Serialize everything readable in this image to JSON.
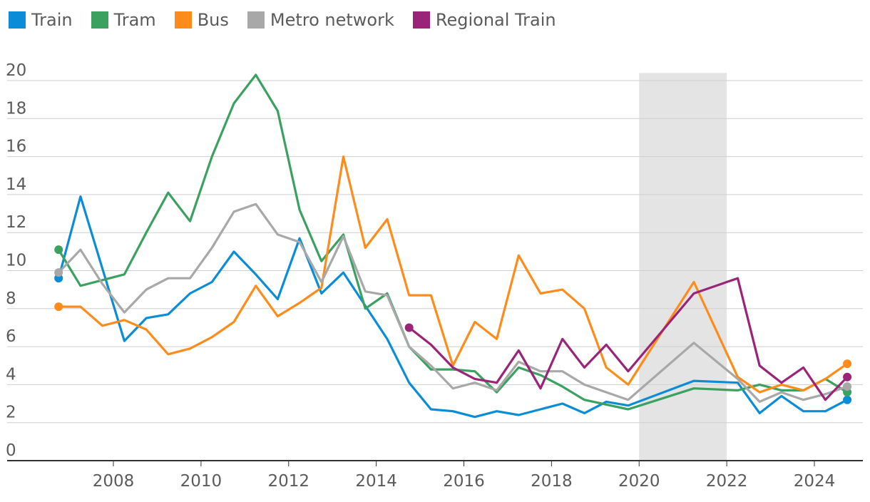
{
  "chart_data": {
    "type": "line",
    "title": "",
    "xlabel": "",
    "ylabel": "",
    "ylim": [
      0,
      20
    ],
    "xlim": [
      2006.5,
      2025.5
    ],
    "y_ticks": [
      "0",
      "2",
      "4",
      "6",
      "8",
      "10",
      "12",
      "14",
      "16",
      "18",
      "20"
    ],
    "x_ticks": [
      "2008",
      "2010",
      "2012",
      "2014",
      "2016",
      "2018",
      "2020",
      "2022",
      "2024"
    ],
    "grid": true,
    "legend_position": "top-left",
    "shaded_region": [
      2020,
      2022
    ],
    "series": [
      {
        "name": "Train",
        "color": "#0a8dd6",
        "points": [
          [
            2006.75,
            9.6
          ],
          [
            2007.25,
            13.9
          ],
          [
            2008.25,
            6.3
          ],
          [
            2008.75,
            7.5
          ],
          [
            2009.25,
            7.7
          ],
          [
            2009.75,
            8.8
          ],
          [
            2010.25,
            9.4
          ],
          [
            2010.75,
            11.0
          ],
          [
            2011.25,
            9.8
          ],
          [
            2011.75,
            8.5
          ],
          [
            2012.25,
            11.7
          ],
          [
            2012.75,
            8.8
          ],
          [
            2013.25,
            9.9
          ],
          [
            2014.25,
            6.4
          ],
          [
            2014.75,
            4.1
          ],
          [
            2015.25,
            2.7
          ],
          [
            2015.75,
            2.6
          ],
          [
            2016.25,
            2.3
          ],
          [
            2016.75,
            2.6
          ],
          [
            2017.25,
            2.4
          ],
          [
            2017.75,
            2.7
          ],
          [
            2018.25,
            3.0
          ],
          [
            2018.75,
            2.5
          ],
          [
            2019.25,
            3.1
          ],
          [
            2019.75,
            2.9
          ],
          [
            2021.25,
            4.2
          ],
          [
            2022.25,
            4.1
          ],
          [
            2022.75,
            2.5
          ],
          [
            2023.25,
            3.4
          ],
          [
            2023.75,
            2.6
          ],
          [
            2024.25,
            2.6
          ],
          [
            2024.75,
            3.2
          ]
        ]
      },
      {
        "name": "Tram",
        "color": "#3aa160",
        "points": [
          [
            2006.75,
            11.1
          ],
          [
            2007.25,
            9.2
          ],
          [
            2007.75,
            9.5
          ],
          [
            2008.25,
            9.8
          ],
          [
            2008.75,
            12.0
          ],
          [
            2009.25,
            14.1
          ],
          [
            2009.75,
            12.6
          ],
          [
            2010.25,
            16.0
          ],
          [
            2010.75,
            18.8
          ],
          [
            2011.25,
            20.3
          ],
          [
            2011.75,
            18.4
          ],
          [
            2012.25,
            13.2
          ],
          [
            2012.75,
            10.5
          ],
          [
            2013.25,
            11.9
          ],
          [
            2013.75,
            8.0
          ],
          [
            2014.25,
            8.8
          ],
          [
            2014.75,
            6.0
          ],
          [
            2015.25,
            4.8
          ],
          [
            2015.75,
            4.8
          ],
          [
            2016.25,
            4.7
          ],
          [
            2016.75,
            3.6
          ],
          [
            2017.25,
            4.9
          ],
          [
            2017.75,
            4.5
          ],
          [
            2018.25,
            3.9
          ],
          [
            2018.75,
            3.2
          ],
          [
            2019.75,
            2.7
          ],
          [
            2021.25,
            3.8
          ],
          [
            2022.25,
            3.7
          ],
          [
            2022.75,
            4.0
          ],
          [
            2023.25,
            3.7
          ],
          [
            2023.75,
            3.7
          ],
          [
            2024.25,
            4.3
          ],
          [
            2024.75,
            3.6
          ]
        ]
      },
      {
        "name": "Bus",
        "color": "#ff8c1a",
        "points": [
          [
            2006.75,
            8.1
          ],
          [
            2007.25,
            8.1
          ],
          [
            2007.75,
            7.1
          ],
          [
            2008.25,
            7.4
          ],
          [
            2008.75,
            6.9
          ],
          [
            2009.25,
            5.6
          ],
          [
            2009.75,
            5.9
          ],
          [
            2010.25,
            6.5
          ],
          [
            2010.75,
            7.3
          ],
          [
            2011.25,
            9.2
          ],
          [
            2011.75,
            7.6
          ],
          [
            2012.25,
            8.3
          ],
          [
            2012.75,
            9.1
          ],
          [
            2013.25,
            16.0
          ],
          [
            2013.75,
            11.2
          ],
          [
            2014.25,
            12.7
          ],
          [
            2014.75,
            8.7
          ],
          [
            2015.25,
            8.7
          ],
          [
            2015.75,
            5.0
          ],
          [
            2016.25,
            7.3
          ],
          [
            2016.75,
            6.4
          ],
          [
            2017.25,
            10.8
          ],
          [
            2017.75,
            8.8
          ],
          [
            2018.25,
            9.0
          ],
          [
            2018.75,
            8.0
          ],
          [
            2019.25,
            4.9
          ],
          [
            2019.75,
            4.0
          ],
          [
            2021.25,
            9.4
          ],
          [
            2022.25,
            4.4
          ],
          [
            2022.75,
            3.6
          ],
          [
            2023.25,
            4.0
          ],
          [
            2023.75,
            3.7
          ],
          [
            2024.25,
            4.3
          ],
          [
            2024.75,
            5.1
          ]
        ]
      },
      {
        "name": "Metro network",
        "color": "#a8a8a8",
        "points": [
          [
            2006.75,
            9.9
          ],
          [
            2007.25,
            11.1
          ],
          [
            2007.75,
            9.3
          ],
          [
            2008.25,
            7.8
          ],
          [
            2008.75,
            9.0
          ],
          [
            2009.25,
            9.6
          ],
          [
            2009.75,
            9.6
          ],
          [
            2010.25,
            11.2
          ],
          [
            2010.75,
            13.1
          ],
          [
            2011.25,
            13.5
          ],
          [
            2011.75,
            11.9
          ],
          [
            2012.25,
            11.5
          ],
          [
            2012.75,
            9.4
          ],
          [
            2013.25,
            11.8
          ],
          [
            2013.75,
            8.9
          ],
          [
            2014.25,
            8.7
          ],
          [
            2014.75,
            6.0
          ],
          [
            2015.25,
            5.0
          ],
          [
            2015.75,
            3.8
          ],
          [
            2016.25,
            4.1
          ],
          [
            2016.75,
            3.7
          ],
          [
            2017.25,
            5.2
          ],
          [
            2017.75,
            4.7
          ],
          [
            2018.25,
            4.7
          ],
          [
            2018.75,
            4.0
          ],
          [
            2019.25,
            3.6
          ],
          [
            2019.75,
            3.2
          ],
          [
            2021.25,
            6.2
          ],
          [
            2022.25,
            4.3
          ],
          [
            2022.75,
            3.1
          ],
          [
            2023.25,
            3.6
          ],
          [
            2023.75,
            3.2
          ],
          [
            2024.25,
            3.5
          ],
          [
            2024.75,
            3.9
          ]
        ]
      },
      {
        "name": "Regional Train",
        "color": "#9a2478",
        "points": [
          [
            2014.75,
            7.0
          ],
          [
            2015.25,
            6.1
          ],
          [
            2015.75,
            4.9
          ],
          [
            2016.25,
            4.3
          ],
          [
            2016.75,
            4.1
          ],
          [
            2017.25,
            5.8
          ],
          [
            2017.75,
            3.8
          ],
          [
            2018.25,
            6.4
          ],
          [
            2018.75,
            4.9
          ],
          [
            2019.25,
            6.1
          ],
          [
            2019.75,
            4.7
          ],
          [
            2021.25,
            8.8
          ],
          [
            2022.25,
            9.6
          ],
          [
            2022.75,
            5.0
          ],
          [
            2023.25,
            4.1
          ],
          [
            2023.75,
            4.9
          ],
          [
            2024.25,
            3.2
          ],
          [
            2024.75,
            4.4
          ]
        ]
      }
    ]
  }
}
